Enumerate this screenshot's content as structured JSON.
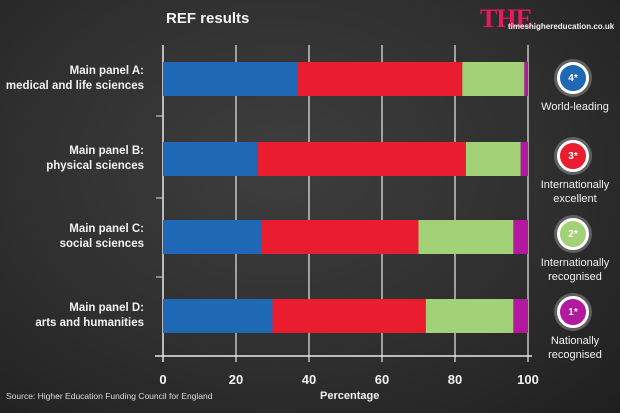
{
  "header": {
    "title": "REF results",
    "logo": "THE",
    "logo_url": "timeshighereducation.co.uk"
  },
  "source": "Source: Higher Education Funding Council for England",
  "chart_data": {
    "type": "bar",
    "orientation": "horizontal",
    "stacked": true,
    "title": "REF results",
    "xlabel": "Percentage",
    "ylabel": "",
    "xlim": [
      0,
      100
    ],
    "xticks": [
      "0",
      "20",
      "40",
      "60",
      "80",
      "100"
    ],
    "grid": true,
    "categories": [
      {
        "line1": "Main panel A:",
        "line2": "medical and life sciences"
      },
      {
        "line1": "Main panel B:",
        "line2": "physical sciences"
      },
      {
        "line1": "Main panel C:",
        "line2": "social sciences"
      },
      {
        "line1": "Main panel D:",
        "line2": "arts and humanities"
      }
    ],
    "series": [
      {
        "name": "4*",
        "label": "World-leading",
        "color": "#1f68b5",
        "values": [
          37,
          26,
          27,
          30
        ]
      },
      {
        "name": "3*",
        "label": "Internationally excellent",
        "color": "#ea1c2f",
        "values": [
          45,
          57,
          43,
          42
        ]
      },
      {
        "name": "2*",
        "label": "Internationally recognised",
        "color": "#a3d177",
        "values": [
          17,
          15,
          26,
          24
        ]
      },
      {
        "name": "1*",
        "label": "Nationally recognised",
        "color": "#b3199e",
        "values": [
          1,
          2,
          4,
          4
        ]
      }
    ],
    "legend": "right"
  }
}
